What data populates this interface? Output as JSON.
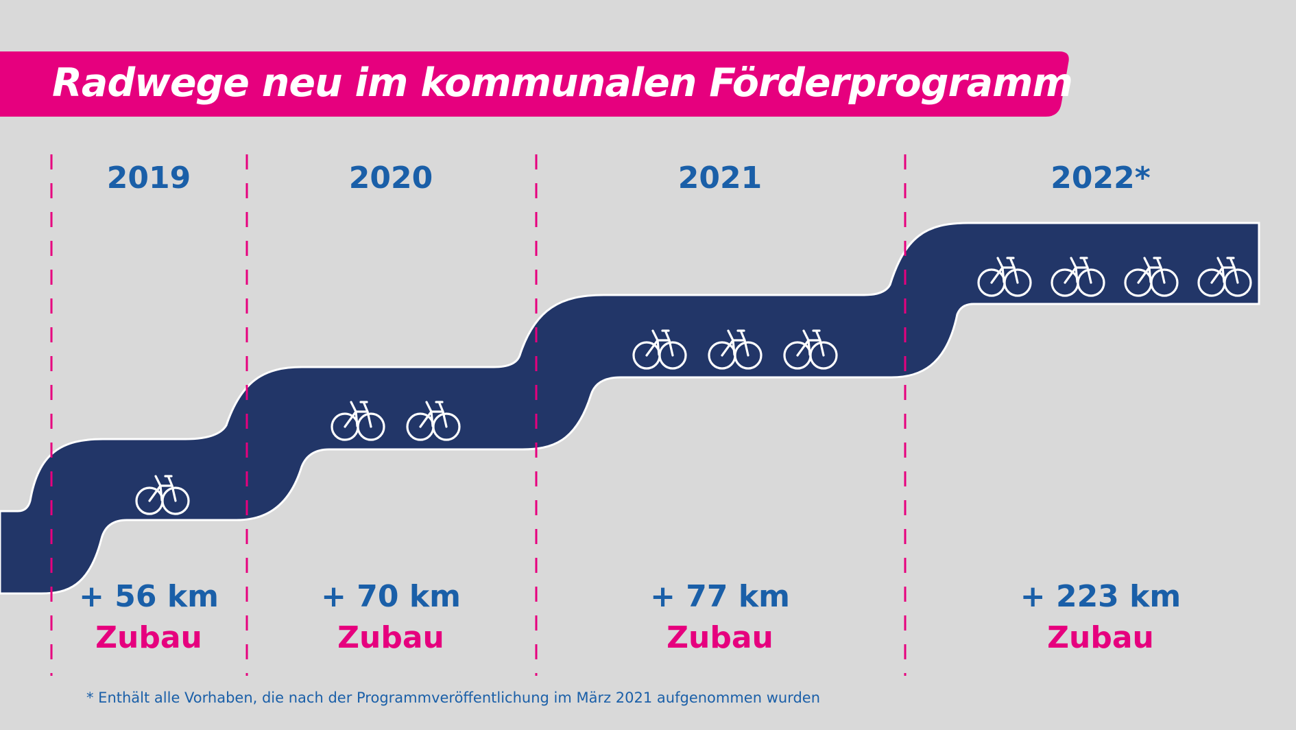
{
  "title": "Radwege neu im kommunalen Förderprogramm",
  "footnote": "* Enthält alle Vorhaben, die nach der Programmveröffentlichung im März 2021 aufgenommen wurden",
  "colors": {
    "background": "#d9d9d9",
    "title_bar": "#e6007e",
    "road": "#223668",
    "year_text": "#1a5fa8",
    "zubau_text": "#e6007e",
    "dashed_line": "#e6007e",
    "bike_icon": "#ffffff"
  },
  "chart_data": {
    "type": "bar",
    "title": "Radwege neu im kommunalen Förderprogramm",
    "categories": [
      "2019",
      "2020",
      "2021",
      "2022*"
    ],
    "values": [
      56,
      70,
      77,
      223
    ],
    "value_labels": [
      "+ 56 km",
      "+ 70 km",
      "+ 77 km",
      "+ 223 km"
    ],
    "value_suffix": "Zubau",
    "bike_icons": [
      1,
      2,
      3,
      4
    ],
    "icon": "bicycle-icon"
  }
}
